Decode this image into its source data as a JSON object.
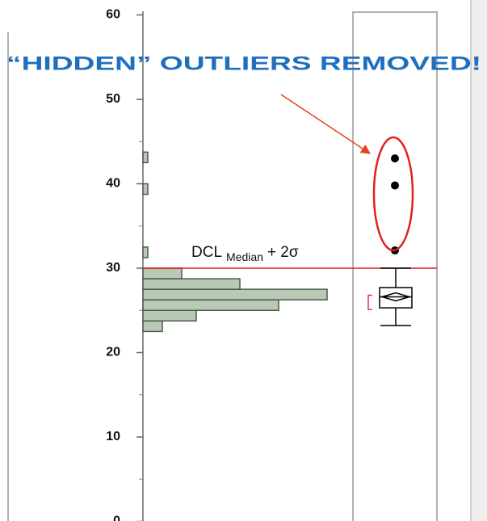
{
  "chart_data": {
    "type": "histogram_box",
    "annotation": "“HIDDEN” OUTLIERS REMOVED!",
    "ylim": [
      0,
      60
    ],
    "yticks": [
      0,
      10,
      20,
      30,
      40,
      50,
      60
    ],
    "minor_yticks": [
      5,
      15,
      25,
      35,
      45,
      55
    ],
    "bins": [
      22.5,
      23.75,
      25,
      26.25,
      27.5,
      28.75,
      30,
      31.25,
      32.5,
      33.75,
      35,
      36.25,
      37.5,
      38.75,
      40,
      41.25,
      42.5,
      43.75
    ],
    "counts": [
      4,
      11,
      28,
      38,
      20,
      8,
      0,
      1,
      0,
      0,
      0,
      0,
      0,
      1,
      0,
      0,
      1
    ],
    "bar_color": "#b9c9b5",
    "box": {
      "whisker_low": 23.2,
      "q1": 25.3,
      "median": 26.6,
      "mean": 26.6,
      "q3": 27.7,
      "whisker_high": 30,
      "outliers": [
        43,
        39.8,
        32.1
      ],
      "shortest_half": [
        25.1,
        26.8
      ]
    },
    "reference_line": {
      "value": 30,
      "color": "#e02020",
      "label": "DCL",
      "label_sub": "Median",
      "label_suffix": "+ 2σ"
    },
    "annotation_color": "#1f6fbf"
  }
}
